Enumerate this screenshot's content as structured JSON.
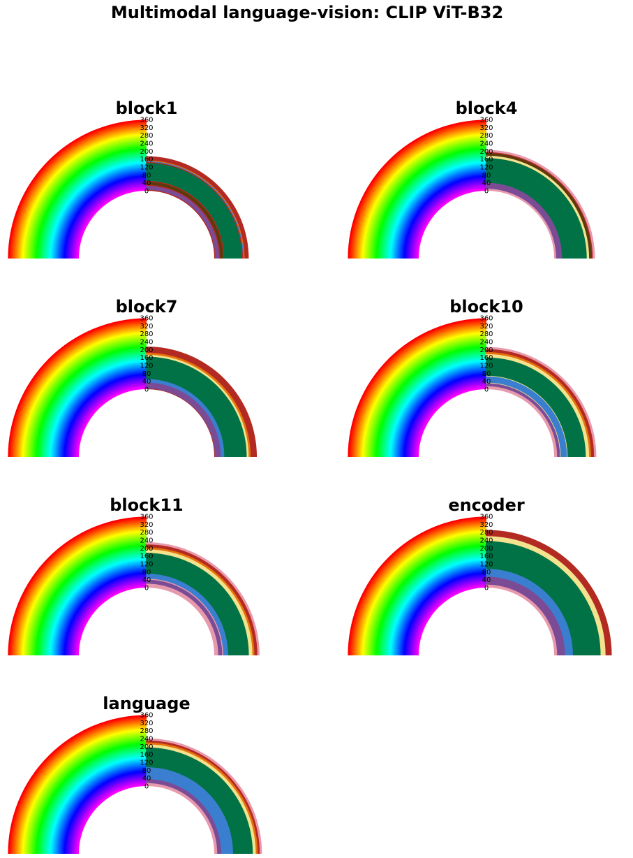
{
  "title": "Multimodal language-vision: CLIP ViT-B32",
  "chart_data": [
    {
      "type": "semicircular-stacked-rings",
      "title": "block1",
      "ticks": [
        0,
        40,
        80,
        120,
        160,
        200,
        240,
        280,
        320,
        360
      ],
      "rings": [
        {
          "color": "#b22a22",
          "value": 5
        },
        {
          "color": "#7b4b96",
          "value": 20
        },
        {
          "color": "#b22a22",
          "value": 5
        },
        {
          "color": "#5b3a0c",
          "value": 15
        },
        {
          "color": "#b22a22",
          "value": 5
        },
        {
          "color": "#007246",
          "value": 90
        },
        {
          "color": "#b22a22",
          "value": 5
        },
        {
          "color": "#3a7fcf",
          "value": 4
        },
        {
          "color": "#e6730c",
          "value": 4
        },
        {
          "color": "#b22a22",
          "value": 20
        }
      ]
    },
    {
      "type": "semicircular-stacked-rings",
      "title": "block4",
      "ticks": [
        0,
        40,
        80,
        120,
        160,
        200,
        240,
        280,
        320,
        360
      ],
      "rings": [
        {
          "color": "#e89aad",
          "value": 10
        },
        {
          "color": "#7b4b96",
          "value": 30
        },
        {
          "color": "#007246",
          "value": 125
        },
        {
          "color": "#f3e38e",
          "value": 12
        },
        {
          "color": "#5b3a0c",
          "value": 13
        },
        {
          "color": "#b22a22",
          "value": 5
        },
        {
          "color": "#e89aad",
          "value": 10
        }
      ]
    },
    {
      "type": "semicircular-stacked-rings",
      "title": "block7",
      "ticks": [
        0,
        40,
        80,
        120,
        160,
        200,
        240,
        280,
        320,
        360
      ],
      "rings": [
        {
          "color": "#b22a22",
          "value": 3
        },
        {
          "color": "#7b4b96",
          "value": 30
        },
        {
          "color": "#3a7fcf",
          "value": 18
        },
        {
          "color": "#007246",
          "value": 113
        },
        {
          "color": "#f3e38e",
          "value": 10
        },
        {
          "color": "#e6730c",
          "value": 10
        },
        {
          "color": "#b22a22",
          "value": 30
        }
      ]
    },
    {
      "type": "semicircular-stacked-rings",
      "title": "block10",
      "ticks": [
        0,
        40,
        80,
        120,
        160,
        200,
        240,
        280,
        320,
        360
      ],
      "rings": [
        {
          "color": "#e89aad",
          "value": 15
        },
        {
          "color": "#7b4b96",
          "value": 15
        },
        {
          "color": "#f3e38e",
          "value": 3
        },
        {
          "color": "#3a7fcf",
          "value": 32
        },
        {
          "color": "#f3e38e",
          "value": 3
        },
        {
          "color": "#007246",
          "value": 92
        },
        {
          "color": "#f3e38e",
          "value": 17
        },
        {
          "color": "#e6730c",
          "value": 10
        },
        {
          "color": "#b22a22",
          "value": 15
        },
        {
          "color": "#e89aad",
          "value": 10
        }
      ]
    },
    {
      "type": "semicircular-stacked-rings",
      "title": "block11",
      "ticks": [
        0,
        40,
        80,
        120,
        160,
        200,
        240,
        280,
        320,
        360
      ],
      "rings": [
        {
          "color": "#e89aad",
          "value": 20
        },
        {
          "color": "#7b4b96",
          "value": 20
        },
        {
          "color": "#e89aad",
          "value": 5
        },
        {
          "color": "#3a7fcf",
          "value": 25
        },
        {
          "color": "#007246",
          "value": 105
        },
        {
          "color": "#f3e38e",
          "value": 18
        },
        {
          "color": "#e6730c",
          "value": 10
        },
        {
          "color": "#b22a22",
          "value": 15
        },
        {
          "color": "#e89aad",
          "value": 10
        }
      ]
    },
    {
      "type": "semicircular-stacked-rings",
      "title": "encoder",
      "ticks": [
        0,
        40,
        80,
        120,
        160,
        200,
        240,
        280,
        320,
        360
      ],
      "rings": [
        {
          "color": "#e89aad",
          "value": 15
        },
        {
          "color": "#7b4b96",
          "value": 40
        },
        {
          "color": "#3a7fcf",
          "value": 40
        },
        {
          "color": "#007246",
          "value": 140
        },
        {
          "color": "#f3e38e",
          "value": 25
        },
        {
          "color": "#b22a22",
          "value": 30
        }
      ]
    },
    {
      "type": "semicircular-stacked-rings",
      "title": "language",
      "ticks": [
        0,
        40,
        80,
        120,
        160,
        200,
        240,
        280,
        320,
        360
      ],
      "rings": [
        {
          "color": "#e89aad",
          "value": 15
        },
        {
          "color": "#7b4b96",
          "value": 20
        },
        {
          "color": "#3a7fcf",
          "value": 60
        },
        {
          "color": "#007246",
          "value": 100
        },
        {
          "color": "#f3e38e",
          "value": 15
        },
        {
          "color": "#e6730c",
          "value": 10
        },
        {
          "color": "#b22a22",
          "value": 10
        },
        {
          "color": "#e89aad",
          "value": 10
        }
      ]
    }
  ]
}
